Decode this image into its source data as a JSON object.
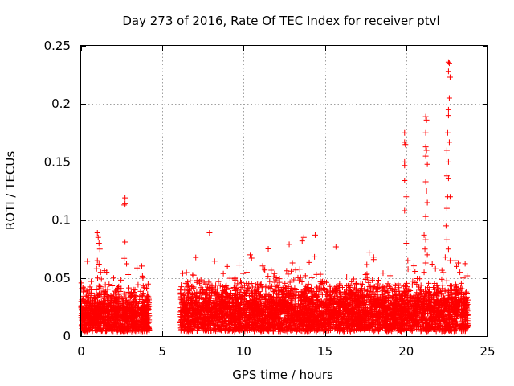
{
  "chart_data": {
    "type": "scatter",
    "title": "Day 273 of 2016, Rate Of TEC Index for receiver ptvl",
    "xlabel": "GPS time / hours",
    "ylabel": "ROTI / TECUs",
    "xlim": [
      0,
      25
    ],
    "ylim": [
      0,
      0.25
    ],
    "xticks": [
      0,
      5,
      10,
      15,
      20,
      25
    ],
    "xtick_labels": [
      "0",
      "5",
      "10",
      "15",
      "20",
      "25"
    ],
    "yticks": [
      0,
      0.05,
      0.1,
      0.15,
      0.2,
      0.25
    ],
    "ytick_labels": [
      "0",
      "0.05",
      "0.1",
      "0.15",
      "0.2",
      "0.25"
    ],
    "grid": true,
    "marker": "+",
    "color": "#ff0000",
    "series": [
      {
        "name": "ROTI",
        "dense_segments": [
          {
            "x_range": [
              0.0,
              4.2
            ],
            "baseline": 0.018,
            "spread": 0.022
          },
          {
            "x_range": [
              6.1,
              23.8
            ],
            "baseline": 0.02,
            "spread": 0.025
          }
        ],
        "points": [
          {
            "x": 1.0,
            "y": 0.089
          },
          {
            "x": 1.05,
            "y": 0.085
          },
          {
            "x": 1.1,
            "y": 0.08
          },
          {
            "x": 1.15,
            "y": 0.075
          },
          {
            "x": 1.0,
            "y": 0.065
          },
          {
            "x": 1.1,
            "y": 0.062
          },
          {
            "x": 0.95,
            "y": 0.058
          },
          {
            "x": 1.2,
            "y": 0.055
          },
          {
            "x": 2.7,
            "y": 0.119
          },
          {
            "x": 2.7,
            "y": 0.114
          },
          {
            "x": 2.65,
            "y": 0.113
          },
          {
            "x": 2.7,
            "y": 0.081
          },
          {
            "x": 2.65,
            "y": 0.067
          },
          {
            "x": 3.8,
            "y": 0.05
          },
          {
            "x": 2.0,
            "y": 0.05
          },
          {
            "x": 7.9,
            "y": 0.089
          },
          {
            "x": 9.0,
            "y": 0.06
          },
          {
            "x": 10.4,
            "y": 0.07
          },
          {
            "x": 10.2,
            "y": 0.055
          },
          {
            "x": 11.3,
            "y": 0.057
          },
          {
            "x": 12.8,
            "y": 0.079
          },
          {
            "x": 13.0,
            "y": 0.063
          },
          {
            "x": 13.2,
            "y": 0.057
          },
          {
            "x": 13.6,
            "y": 0.082
          },
          {
            "x": 13.7,
            "y": 0.085
          },
          {
            "x": 14.4,
            "y": 0.087
          },
          {
            "x": 15.9,
            "y": 0.045
          },
          {
            "x": 18.0,
            "y": 0.066
          },
          {
            "x": 18.0,
            "y": 0.068
          },
          {
            "x": 17.6,
            "y": 0.05
          },
          {
            "x": 19.0,
            "y": 0.052
          },
          {
            "x": 19.9,
            "y": 0.175
          },
          {
            "x": 19.9,
            "y": 0.167
          },
          {
            "x": 19.95,
            "y": 0.165
          },
          {
            "x": 19.9,
            "y": 0.15
          },
          {
            "x": 19.9,
            "y": 0.147
          },
          {
            "x": 19.9,
            "y": 0.134
          },
          {
            "x": 20.0,
            "y": 0.12
          },
          {
            "x": 19.9,
            "y": 0.108
          },
          {
            "x": 20.0,
            "y": 0.08
          },
          {
            "x": 20.1,
            "y": 0.065
          },
          {
            "x": 21.2,
            "y": 0.189
          },
          {
            "x": 21.25,
            "y": 0.186
          },
          {
            "x": 21.2,
            "y": 0.175
          },
          {
            "x": 21.2,
            "y": 0.163
          },
          {
            "x": 21.25,
            "y": 0.16
          },
          {
            "x": 21.2,
            "y": 0.155
          },
          {
            "x": 21.3,
            "y": 0.148
          },
          {
            "x": 21.2,
            "y": 0.133
          },
          {
            "x": 21.25,
            "y": 0.125
          },
          {
            "x": 21.3,
            "y": 0.115
          },
          {
            "x": 21.2,
            "y": 0.103
          },
          {
            "x": 21.1,
            "y": 0.087
          },
          {
            "x": 21.2,
            "y": 0.083
          },
          {
            "x": 21.15,
            "y": 0.075
          },
          {
            "x": 21.3,
            "y": 0.07
          },
          {
            "x": 21.2,
            "y": 0.063
          },
          {
            "x": 21.1,
            "y": 0.055
          },
          {
            "x": 21.6,
            "y": 0.062
          },
          {
            "x": 21.8,
            "y": 0.058
          },
          {
            "x": 22.6,
            "y": 0.236
          },
          {
            "x": 22.65,
            "y": 0.235
          },
          {
            "x": 22.6,
            "y": 0.228
          },
          {
            "x": 22.7,
            "y": 0.223
          },
          {
            "x": 22.65,
            "y": 0.205
          },
          {
            "x": 22.6,
            "y": 0.195
          },
          {
            "x": 22.6,
            "y": 0.19
          },
          {
            "x": 22.55,
            "y": 0.175
          },
          {
            "x": 22.5,
            "y": 0.16
          },
          {
            "x": 22.6,
            "y": 0.15
          },
          {
            "x": 22.5,
            "y": 0.138
          },
          {
            "x": 22.6,
            "y": 0.136
          },
          {
            "x": 22.55,
            "y": 0.12
          },
          {
            "x": 22.5,
            "y": 0.11
          },
          {
            "x": 22.45,
            "y": 0.095
          },
          {
            "x": 22.5,
            "y": 0.083
          },
          {
            "x": 22.6,
            "y": 0.075
          },
          {
            "x": 22.4,
            "y": 0.068
          },
          {
            "x": 22.7,
            "y": 0.065
          },
          {
            "x": 22.65,
            "y": 0.167
          },
          {
            "x": 22.7,
            "y": 0.12
          },
          {
            "x": 23.0,
            "y": 0.065
          },
          {
            "x": 23.1,
            "y": 0.06
          },
          {
            "x": 23.2,
            "y": 0.063
          },
          {
            "x": 23.3,
            "y": 0.055
          },
          {
            "x": 23.5,
            "y": 0.05
          }
        ]
      }
    ]
  }
}
